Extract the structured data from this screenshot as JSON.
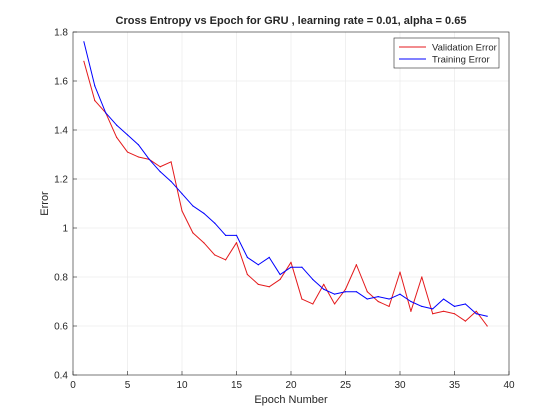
{
  "chart_data": {
    "type": "line",
    "title": "Cross Entropy vs Epoch for GRU , learning rate = 0.01, alpha = 0.65",
    "xlabel": "Epoch Number",
    "ylabel": "Error",
    "xlim": [
      0,
      40
    ],
    "ylim": [
      0.4,
      1.8
    ],
    "xticks": [
      0,
      5,
      10,
      15,
      20,
      25,
      30,
      35,
      40
    ],
    "yticks": [
      0.4,
      0.6,
      0.8,
      1,
      1.2,
      1.4,
      1.6,
      1.8
    ],
    "grid": true,
    "legend_position": "top-right",
    "x": [
      1,
      2,
      3,
      4,
      5,
      6,
      7,
      8,
      9,
      10,
      11,
      12,
      13,
      14,
      15,
      16,
      17,
      18,
      19,
      20,
      21,
      22,
      23,
      24,
      25,
      26,
      27,
      28,
      29,
      30,
      31,
      32,
      33,
      34,
      35,
      36,
      37,
      38
    ],
    "series": [
      {
        "name": "Validation Error",
        "color": "#e41a1c",
        "values": [
          1.68,
          1.52,
          1.47,
          1.37,
          1.31,
          1.29,
          1.28,
          1.25,
          1.27,
          1.07,
          0.98,
          0.94,
          0.89,
          0.87,
          0.94,
          0.81,
          0.77,
          0.76,
          0.79,
          0.86,
          0.71,
          0.69,
          0.77,
          0.69,
          0.75,
          0.85,
          0.74,
          0.7,
          0.68,
          0.82,
          0.66,
          0.8,
          0.65,
          0.66,
          0.65,
          0.62,
          0.66,
          0.6
        ]
      },
      {
        "name": "Training Error",
        "color": "#0000ff",
        "values": [
          1.76,
          1.58,
          1.47,
          1.42,
          1.38,
          1.34,
          1.28,
          1.23,
          1.19,
          1.14,
          1.09,
          1.06,
          1.02,
          0.97,
          0.97,
          0.88,
          0.85,
          0.88,
          0.81,
          0.84,
          0.84,
          0.79,
          0.75,
          0.73,
          0.74,
          0.74,
          0.71,
          0.72,
          0.71,
          0.73,
          0.7,
          0.68,
          0.67,
          0.71,
          0.68,
          0.69,
          0.65,
          0.64
        ]
      }
    ]
  }
}
